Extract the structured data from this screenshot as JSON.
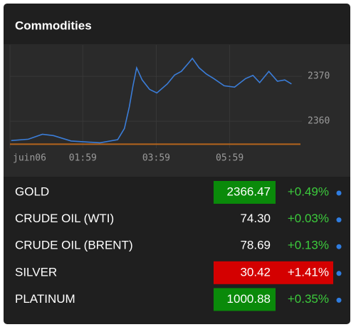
{
  "header": {
    "title": "Commodities"
  },
  "chart_data": {
    "type": "line",
    "x": [
      2,
      30,
      53,
      71,
      100,
      147,
      176,
      187,
      195,
      201,
      207,
      216,
      228,
      240,
      257,
      269,
      280,
      292,
      298,
      309,
      321,
      333,
      350,
      367,
      385,
      397,
      408,
      423,
      437,
      449,
      460
    ],
    "series": [
      {
        "color": "#3b7dd8",
        "values": [
          2355.7,
          2356.0,
          2357.1,
          2356.8,
          2355.6,
          2355.2,
          2355.9,
          2358.4,
          2363.2,
          2367.9,
          2371.9,
          2369.2,
          2367.1,
          2366.3,
          2368.3,
          2370.3,
          2371.1,
          2373.0,
          2374.0,
          2371.9,
          2370.5,
          2369.5,
          2367.9,
          2367.6,
          2369.5,
          2370.2,
          2368.6,
          2371.1,
          2368.9,
          2369.2,
          2368.3
        ]
      }
    ],
    "reference_line": {
      "value": 2354.9,
      "color": "#b5651d"
    },
    "xlim": [
      0,
      470
    ],
    "xticks": [
      {
        "value": 0,
        "label": "juin06"
      },
      {
        "value": 119,
        "label": "01:59"
      },
      {
        "value": 239,
        "label": "03:59"
      },
      {
        "value": 359,
        "label": "05:59"
      }
    ],
    "ylim": [
      2354,
      2377
    ],
    "yticks": [
      2360,
      2370
    ],
    "grid": true
  },
  "table": {
    "rows": [
      {
        "name": "GOLD",
        "price": "2366.47",
        "change": "+0.49%",
        "price_bg": "#0a8a0a"
      },
      {
        "name": "CRUDE OIL (WTI)",
        "price": "74.30",
        "change": "+0.03%"
      },
      {
        "name": "CRUDE OIL (BRENT)",
        "price": "78.69",
        "change": "+0.13%"
      },
      {
        "name": "SILVER",
        "price": "30.42",
        "change": "+1.41%",
        "price_bg": "#d40000",
        "change_bg": "#d40000"
      },
      {
        "name": "PLATINUM",
        "price": "1000.88",
        "change": "+0.35%",
        "price_bg": "#0a8a0a"
      }
    ]
  }
}
